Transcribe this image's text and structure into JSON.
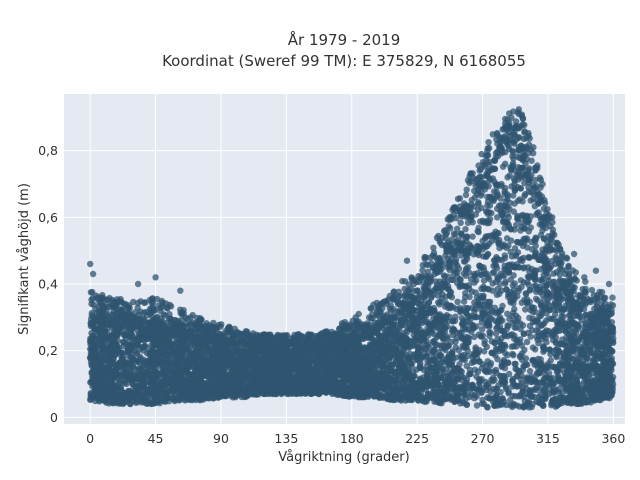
{
  "chart_data": {
    "type": "scatter",
    "title": "År 1979 - 2019",
    "subtitle": "Koordinat (Sweref 99 TM): E 375829, N 6168055",
    "xlabel": "Vågriktning (grader)",
    "ylabel": "Signifikant våghöjd (m)",
    "xlim": [
      -18,
      368
    ],
    "ylim": [
      -0.02,
      0.97
    ],
    "x_ticks": [
      0,
      45,
      90,
      135,
      180,
      225,
      270,
      315,
      360
    ],
    "x_tick_labels": [
      "0",
      "45",
      "90",
      "135",
      "180",
      "225",
      "270",
      "315",
      "360"
    ],
    "y_ticks": [
      0,
      0.2,
      0.4,
      0.6,
      0.8
    ],
    "y_tick_labels": [
      "0",
      "0,2",
      "0,4",
      "0,6",
      "0,8"
    ],
    "grid": true,
    "marker_color": "#2f5470",
    "plot_background": "#e5e9f2",
    "envelope": {
      "direction": [
        0,
        15,
        30,
        45,
        60,
        75,
        90,
        105,
        120,
        135,
        150,
        165,
        180,
        195,
        210,
        225,
        240,
        255,
        270,
        280,
        290,
        295,
        300,
        310,
        320,
        330,
        340,
        350,
        360
      ],
      "min_height": [
        0.05,
        0.04,
        0.04,
        0.04,
        0.05,
        0.05,
        0.06,
        0.06,
        0.07,
        0.07,
        0.07,
        0.07,
        0.06,
        0.06,
        0.05,
        0.05,
        0.04,
        0.04,
        0.03,
        0.03,
        0.03,
        0.03,
        0.03,
        0.03,
        0.03,
        0.04,
        0.04,
        0.05,
        0.06
      ],
      "max_height": [
        0.38,
        0.36,
        0.35,
        0.37,
        0.33,
        0.3,
        0.28,
        0.26,
        0.25,
        0.25,
        0.25,
        0.26,
        0.3,
        0.34,
        0.39,
        0.45,
        0.55,
        0.68,
        0.8,
        0.88,
        0.92,
        0.93,
        0.88,
        0.72,
        0.56,
        0.46,
        0.41,
        0.38,
        0.36
      ],
      "dense_top": [
        0.28,
        0.29,
        0.29,
        0.28,
        0.26,
        0.24,
        0.23,
        0.22,
        0.22,
        0.22,
        0.22,
        0.22,
        0.23,
        0.26,
        0.3,
        0.35,
        0.45,
        0.58,
        0.7,
        0.78,
        0.82,
        0.84,
        0.78,
        0.62,
        0.46,
        0.36,
        0.31,
        0.29,
        0.27
      ]
    },
    "outliers": [
      {
        "x": 0,
        "y": 0.46
      },
      {
        "x": 2,
        "y": 0.43
      },
      {
        "x": 33,
        "y": 0.4
      },
      {
        "x": 45,
        "y": 0.42
      },
      {
        "x": 62,
        "y": 0.38
      },
      {
        "x": 218,
        "y": 0.47
      },
      {
        "x": 248,
        "y": 0.6
      },
      {
        "x": 255,
        "y": 0.61
      },
      {
        "x": 268,
        "y": 0.74
      },
      {
        "x": 305,
        "y": 0.81
      },
      {
        "x": 318,
        "y": 0.6
      },
      {
        "x": 333,
        "y": 0.49
      },
      {
        "x": 340,
        "y": 0.42
      },
      {
        "x": 348,
        "y": 0.44
      },
      {
        "x": 357,
        "y": 0.4
      }
    ]
  }
}
